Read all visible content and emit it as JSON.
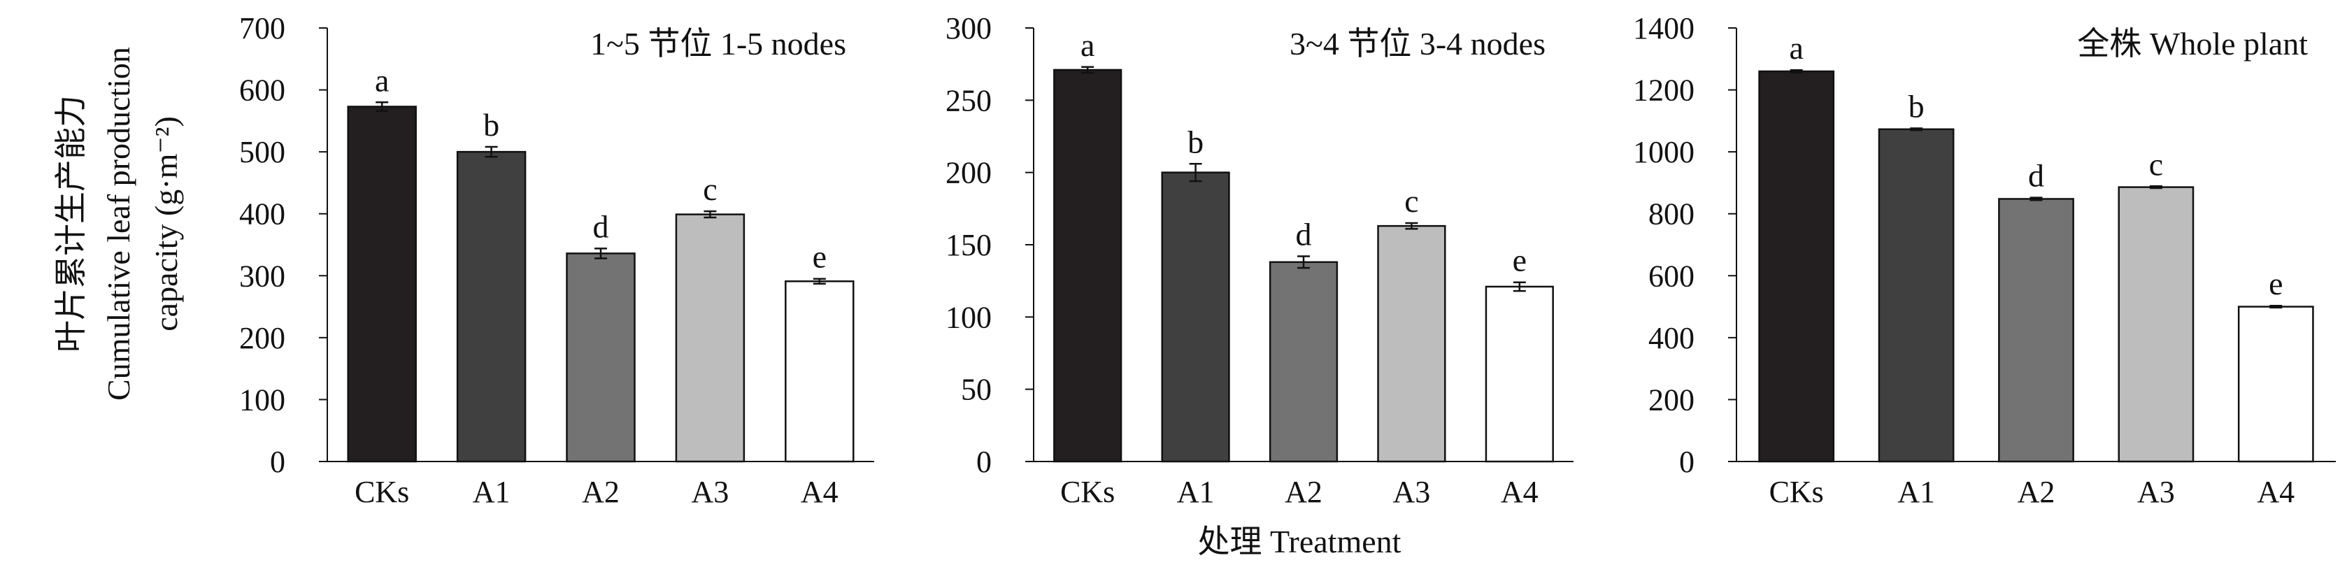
{
  "ylabel_lines": [
    "叶片累计生产能力",
    "Cumulative leaf production",
    "capacity (g·m⁻²)"
  ],
  "xlabel": "处理 Treatment",
  "chart_data": [
    {
      "type": "bar",
      "title": "1~5 节位 1-5 nodes",
      "categories": [
        "CKs",
        "A1",
        "A2",
        "A3",
        "A4"
      ],
      "values": [
        573,
        500,
        336,
        399,
        291
      ],
      "errors": [
        7,
        8,
        8,
        5,
        4
      ],
      "letters": [
        "a",
        "b",
        "d",
        "c",
        "e"
      ],
      "ylim": [
        0,
        700
      ],
      "yticks": [
        0,
        100,
        200,
        300,
        400,
        500,
        600,
        700
      ],
      "colors": [
        "#231f20",
        "#404040",
        "#737373",
        "#bdbdbd",
        "#ffffff"
      ]
    },
    {
      "type": "bar",
      "title": "3~4 节位 3-4 nodes",
      "categories": [
        "CKs",
        "A1",
        "A2",
        "A3",
        "A4"
      ],
      "values": [
        271,
        200,
        138,
        163,
        121
      ],
      "errors": [
        2,
        6,
        4,
        2,
        3
      ],
      "letters": [
        "a",
        "b",
        "d",
        "c",
        "e"
      ],
      "ylim": [
        0,
        300
      ],
      "yticks": [
        0,
        50,
        100,
        150,
        200,
        250,
        300
      ],
      "colors": [
        "#231f20",
        "#404040",
        "#737373",
        "#bdbdbd",
        "#ffffff"
      ]
    },
    {
      "type": "bar",
      "title": "全株 Whole plant",
      "categories": [
        "CKs",
        "A1",
        "A2",
        "A3",
        "A4"
      ],
      "values": [
        1260,
        1073,
        848,
        886,
        500
      ],
      "errors": [
        4,
        3,
        4,
        3,
        3
      ],
      "letters": [
        "a",
        "b",
        "d",
        "c",
        "e"
      ],
      "ylim": [
        0,
        1400
      ],
      "yticks": [
        0,
        200,
        400,
        600,
        800,
        1000,
        1200,
        1400
      ],
      "colors": [
        "#231f20",
        "#404040",
        "#737373",
        "#bdbdbd",
        "#ffffff"
      ]
    }
  ]
}
